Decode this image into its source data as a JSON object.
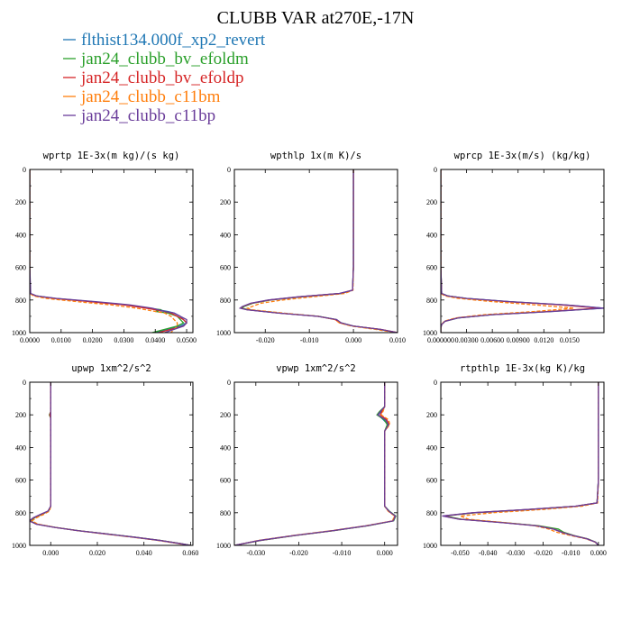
{
  "title": "CLUBB VAR at270E,-17N",
  "legend": [
    {
      "label": "flthist134.000f_xp2_revert",
      "color": "#1f77b4"
    },
    {
      "label": "jan24_clubb_bv_efoldm",
      "color": "#2ca02c"
    },
    {
      "label": "jan24_clubb_bv_efoldp",
      "color": "#d62728"
    },
    {
      "label": "jan24_clubb_c11bm",
      "color": "#ff7f0e"
    },
    {
      "label": "jan24_clubb_c11bp",
      "color": "#6a3d9a"
    }
  ],
  "chart_data": [
    {
      "type": "line",
      "title": "wprtp 1E-3x(m kg)/(s kg)",
      "xlim": [
        0,
        0.052
      ],
      "ylim": [
        1000,
        0
      ],
      "xticks": [
        0,
        0.01,
        0.02,
        0.03,
        0.04,
        0.05
      ],
      "xticklabels": [
        "0.0000",
        "0.0100",
        "0.0200",
        "0.0300",
        "0.0400",
        "0.0500"
      ],
      "yticks": [
        0,
        200,
        400,
        600,
        800,
        1000
      ],
      "yticklabels": [
        "0",
        "200",
        "400",
        "600",
        "800",
        "1000"
      ],
      "y": [
        0,
        200,
        400,
        600,
        760,
        775,
        790,
        810,
        830,
        850,
        860,
        870,
        880,
        900,
        920,
        940,
        960,
        980,
        1000
      ],
      "series": [
        {
          "name": "flthist134.000f_xp2_revert",
          "values": [
            0,
            0,
            0,
            0,
            0.0002,
            0.002,
            0.008,
            0.02,
            0.031,
            0.038,
            0.041,
            0.044,
            0.046,
            0.048,
            0.049,
            0.05,
            0.048,
            0.044,
            0.04
          ]
        },
        {
          "name": "jan24_clubb_bv_efoldm",
          "values": [
            0,
            0,
            0,
            0,
            0.0002,
            0.002,
            0.008,
            0.02,
            0.031,
            0.038,
            0.042,
            0.04,
            0.044,
            0.047,
            0.048,
            0.049,
            0.047,
            0.043,
            0.039
          ]
        },
        {
          "name": "jan24_clubb_bv_efoldp",
          "values": [
            0,
            0,
            0,
            0,
            0.0002,
            0.0018,
            0.0075,
            0.019,
            0.03,
            0.037,
            0.04,
            0.043,
            0.045,
            0.047,
            0.049,
            0.05,
            0.049,
            0.045,
            0.041
          ]
        },
        {
          "name": "jan24_clubb_c11bm",
          "values": [
            0,
            0,
            0,
            0,
            0.0001,
            0.0012,
            0.005,
            0.015,
            0.026,
            0.034,
            0.037,
            0.04,
            0.043,
            0.045,
            0.046,
            0.047,
            0.047,
            0.046,
            0.045
          ]
        },
        {
          "name": "jan24_clubb_c11bp",
          "values": [
            0,
            0,
            0,
            0,
            0.0003,
            0.0022,
            0.0085,
            0.021,
            0.032,
            0.039,
            0.041,
            0.043,
            0.046,
            0.048,
            0.05,
            0.05,
            0.049,
            0.046,
            0.043
          ]
        }
      ]
    },
    {
      "type": "line",
      "title": "wpthlp 1x(m K)/s",
      "xlim": [
        -0.027,
        0.01
      ],
      "ylim": [
        1000,
        0
      ],
      "xticks": [
        -0.02,
        -0.01,
        0,
        0.01
      ],
      "xticklabels": [
        "-0.020",
        "-0.010",
        "0.000",
        "0.010"
      ],
      "yticks": [
        0,
        200,
        400,
        600,
        800,
        1000
      ],
      "yticklabels": [
        "0",
        "200",
        "400",
        "600",
        "800",
        "1000"
      ],
      "y": [
        0,
        200,
        400,
        600,
        740,
        760,
        780,
        800,
        820,
        840,
        850,
        860,
        880,
        900,
        920,
        940,
        960,
        980,
        1000
      ],
      "series": [
        {
          "name": "flthist134.000f_xp2_revert",
          "values": [
            0,
            0,
            0,
            0,
            -0.0002,
            -0.003,
            -0.012,
            -0.019,
            -0.023,
            -0.025,
            -0.0255,
            -0.024,
            -0.017,
            -0.008,
            -0.004,
            -0.003,
            0,
            0.006,
            0.01
          ]
        },
        {
          "name": "jan24_clubb_bv_efoldm",
          "values": [
            0,
            0,
            0,
            0,
            -0.0002,
            -0.0028,
            -0.0118,
            -0.0188,
            -0.0228,
            -0.0248,
            -0.0253,
            -0.0238,
            -0.0168,
            -0.0079,
            -0.0039,
            -0.0028,
            0,
            0.006,
            0.0098
          ]
        },
        {
          "name": "jan24_clubb_bv_efoldp",
          "values": [
            0,
            0,
            0,
            0,
            -0.0002,
            -0.0031,
            -0.0121,
            -0.0191,
            -0.0231,
            -0.0251,
            -0.0256,
            -0.0241,
            -0.0171,
            -0.0081,
            -0.0041,
            -0.0031,
            0,
            0.0062,
            0.0101
          ]
        },
        {
          "name": "jan24_clubb_c11bm",
          "values": [
            0,
            0,
            0,
            0,
            -0.0001,
            -0.002,
            -0.009,
            -0.016,
            -0.021,
            -0.023,
            -0.024,
            -0.023,
            -0.016,
            -0.008,
            -0.0042,
            -0.0032,
            -0.0005,
            0.005,
            0.0095
          ]
        },
        {
          "name": "jan24_clubb_c11bp",
          "values": [
            0,
            0,
            0,
            0,
            -0.0002,
            -0.0032,
            -0.0123,
            -0.0193,
            -0.0233,
            -0.0252,
            -0.0257,
            -0.0242,
            -0.0172,
            -0.0082,
            -0.0038,
            -0.0028,
            0,
            0.0061,
            0.01
          ]
        }
      ]
    },
    {
      "type": "line",
      "title": "wprcp 1E-3x(m/s) (kg/kg)",
      "xlim": [
        0,
        0.019
      ],
      "ylim": [
        1000,
        0
      ],
      "xticks": [
        0,
        0.003,
        0.006,
        0.009,
        0.012,
        0.015
      ],
      "xticklabels": [
        "0.000000",
        "0.00300",
        "0.00600",
        "0.00900",
        "0.0120",
        "0.0150"
      ],
      "yticks": [
        0,
        200,
        400,
        600,
        800,
        1000
      ],
      "yticklabels": [
        "0",
        "200",
        "400",
        "600",
        "800",
        "1000"
      ],
      "y": [
        0,
        200,
        400,
        600,
        760,
        775,
        790,
        810,
        830,
        850,
        870,
        890,
        910,
        930,
        950,
        970,
        1000
      ],
      "series": [
        {
          "name": "flthist134.000f_xp2_revert",
          "values": [
            0,
            0,
            0,
            0,
            0.0001,
            0.0008,
            0.003,
            0.008,
            0.0145,
            0.019,
            0.013,
            0.006,
            0.002,
            0.0005,
            0.0001,
            0,
            0
          ]
        },
        {
          "name": "jan24_clubb_bv_efoldm",
          "values": [
            0,
            0,
            0,
            0,
            0.0001,
            0.0008,
            0.0029,
            0.0079,
            0.0143,
            0.0187,
            0.0128,
            0.0059,
            0.002,
            0.0005,
            0.0001,
            0,
            0
          ]
        },
        {
          "name": "jan24_clubb_bv_efoldp",
          "values": [
            0,
            0,
            0,
            0,
            0.0001,
            0.0007,
            0.0028,
            0.0077,
            0.014,
            0.0184,
            0.0127,
            0.0058,
            0.0019,
            0.0005,
            0.0001,
            0,
            0
          ]
        },
        {
          "name": "jan24_clubb_c11bm",
          "values": [
            0,
            0,
            0,
            0,
            0,
            0.0005,
            0.002,
            0.006,
            0.011,
            0.0155,
            0.011,
            0.005,
            0.0017,
            0.0004,
            0.0001,
            0,
            0
          ]
        },
        {
          "name": "jan24_clubb_c11bp",
          "values": [
            0,
            0,
            0,
            0,
            0.0001,
            0.0008,
            0.003,
            0.0081,
            0.0146,
            0.019,
            0.0131,
            0.006,
            0.002,
            0.0005,
            0.0001,
            0,
            0
          ]
        }
      ]
    },
    {
      "type": "line",
      "title": "upwp 1xm^2/s^2",
      "xlim": [
        -0.009,
        0.061
      ],
      "ylim": [
        1000,
        0
      ],
      "xticks": [
        0,
        0.02,
        0.04,
        0.06
      ],
      "xticklabels": [
        "0.000",
        "0.020",
        "0.040",
        "0.060"
      ],
      "yticks": [
        0,
        200,
        400,
        600,
        800,
        1000
      ],
      "yticklabels": [
        "0",
        "200",
        "400",
        "600",
        "800",
        "1000"
      ],
      "y": [
        0,
        180,
        200,
        220,
        400,
        600,
        760,
        790,
        810,
        830,
        850,
        870,
        890,
        910,
        930,
        950,
        970,
        990,
        1000
      ],
      "series": [
        {
          "name": "flthist134.000f_xp2_revert",
          "values": [
            0,
            0,
            0,
            0,
            0,
            0,
            0,
            -0.001,
            -0.004,
            -0.007,
            -0.009,
            -0.006,
            0.002,
            0.012,
            0.024,
            0.036,
            0.047,
            0.056,
            0.06
          ]
        },
        {
          "name": "jan24_clubb_bv_efoldm",
          "values": [
            0,
            0,
            -0.0006,
            0,
            0,
            0,
            0,
            -0.001,
            -0.0038,
            -0.0068,
            -0.0088,
            -0.0058,
            0.0021,
            0.0121,
            0.0241,
            0.0361,
            0.0471,
            0.0561,
            0.06
          ]
        },
        {
          "name": "jan24_clubb_bv_efoldp",
          "values": [
            0,
            0,
            -0.0004,
            0,
            0,
            0,
            0,
            -0.0011,
            -0.0042,
            -0.0072,
            -0.0091,
            -0.0061,
            0.0019,
            0.0119,
            0.0239,
            0.0359,
            0.0469,
            0.0559,
            0.0599
          ]
        },
        {
          "name": "jan24_clubb_c11bm",
          "values": [
            0,
            0,
            0,
            0,
            0,
            0,
            0,
            -0.0005,
            -0.003,
            -0.006,
            -0.008,
            -0.0055,
            0.002,
            0.0115,
            0.023,
            0.035,
            0.046,
            0.055,
            0.0595
          ]
        },
        {
          "name": "jan24_clubb_c11bp",
          "values": [
            0,
            0,
            0,
            0,
            0,
            0,
            0,
            -0.0012,
            -0.0044,
            -0.0074,
            -0.0092,
            -0.0062,
            0.0018,
            0.0118,
            0.0238,
            0.0358,
            0.0468,
            0.0558,
            0.06
          ]
        }
      ]
    },
    {
      "type": "line",
      "title": "vpwp 1xm^2/s^2",
      "xlim": [
        -0.035,
        0.003
      ],
      "ylim": [
        1000,
        0
      ],
      "xticks": [
        -0.03,
        -0.02,
        -0.01,
        0
      ],
      "xticklabels": [
        "-0.030",
        "-0.020",
        "-0.010",
        "0.000"
      ],
      "yticks": [
        0,
        200,
        400,
        600,
        800,
        1000
      ],
      "yticklabels": [
        "0",
        "200",
        "400",
        "600",
        "800",
        "1000"
      ],
      "y": [
        0,
        150,
        180,
        200,
        230,
        260,
        300,
        400,
        600,
        760,
        790,
        820,
        850,
        880,
        910,
        940,
        970,
        1000
      ],
      "series": [
        {
          "name": "flthist134.000f_xp2_revert",
          "values": [
            0,
            0,
            -0.0008,
            -0.0015,
            -0.0003,
            0.0008,
            0,
            0,
            0,
            0,
            0.001,
            0.0025,
            0.002,
            -0.004,
            -0.012,
            -0.021,
            -0.029,
            -0.035
          ]
        },
        {
          "name": "jan24_clubb_bv_efoldm",
          "values": [
            0,
            0,
            -0.0012,
            -0.0018,
            -0.0001,
            0.0006,
            0,
            0,
            0,
            0,
            0.0011,
            0.0026,
            0.0021,
            -0.0039,
            -0.0119,
            -0.0209,
            -0.0289,
            -0.0349
          ]
        },
        {
          "name": "jan24_clubb_bv_efoldp",
          "values": [
            0,
            0,
            -0.0006,
            -0.001,
            0.0005,
            0.001,
            0,
            0,
            0,
            0,
            0.0009,
            0.0024,
            0.0019,
            -0.0041,
            -0.0121,
            -0.0211,
            -0.0291,
            -0.035
          ]
        },
        {
          "name": "jan24_clubb_c11bm",
          "values": [
            0,
            0,
            -0.0004,
            -0.0008,
            0.0009,
            0.0012,
            0,
            0,
            0,
            0,
            0.0008,
            0.0023,
            0.0018,
            -0.0045,
            -0.0125,
            -0.0215,
            -0.0295,
            -0.0348
          ]
        },
        {
          "name": "jan24_clubb_c11bp",
          "values": [
            0,
            0,
            -0.001,
            -0.0016,
            0.0002,
            0.0009,
            0,
            0,
            0,
            0,
            0.001,
            0.0025,
            0.002,
            -0.0042,
            -0.0122,
            -0.0212,
            -0.0292,
            -0.035
          ]
        }
      ]
    },
    {
      "type": "line",
      "title": "rtpthlp 1E-3x(kg K)/kg",
      "xlim": [
        -0.057,
        0.002
      ],
      "ylim": [
        1000,
        0
      ],
      "xticks": [
        -0.05,
        -0.04,
        -0.03,
        -0.02,
        -0.01,
        0
      ],
      "xticklabels": [
        "-0.050",
        "-0.040",
        "-0.030",
        "-0.020",
        "-0.010",
        "0.000"
      ],
      "yticks": [
        0,
        200,
        400,
        600,
        800,
        1000
      ],
      "yticklabels": [
        "0",
        "200",
        "400",
        "600",
        "800",
        "1000"
      ],
      "y": [
        0,
        200,
        400,
        600,
        740,
        760,
        780,
        800,
        820,
        840,
        860,
        880,
        900,
        920,
        940,
        960,
        980,
        1000
      ],
      "series": [
        {
          "name": "flthist134.000f_xp2_revert",
          "values": [
            0,
            0,
            0,
            0,
            -0.0005,
            -0.008,
            -0.025,
            -0.045,
            -0.056,
            -0.05,
            -0.035,
            -0.022,
            -0.016,
            -0.013,
            -0.009,
            -0.004,
            -0.001,
            0
          ]
        },
        {
          "name": "jan24_clubb_bv_efoldm",
          "values": [
            0,
            0,
            0,
            0,
            -0.0005,
            -0.0078,
            -0.0245,
            -0.0445,
            -0.0555,
            -0.0495,
            -0.0345,
            -0.0215,
            -0.0145,
            -0.0125,
            -0.0088,
            -0.0039,
            -0.001,
            0
          ]
        },
        {
          "name": "jan24_clubb_bv_efoldp",
          "values": [
            0,
            0,
            0,
            0,
            -0.0005,
            -0.0082,
            -0.0252,
            -0.0452,
            -0.0562,
            -0.0502,
            -0.0352,
            -0.0222,
            -0.0162,
            -0.0132,
            -0.0091,
            -0.0041,
            -0.0011,
            0
          ]
        },
        {
          "name": "jan24_clubb_c11bm",
          "values": [
            0,
            0,
            0,
            0,
            -0.0003,
            -0.006,
            -0.02,
            -0.038,
            -0.05,
            -0.047,
            -0.034,
            -0.023,
            -0.018,
            -0.015,
            -0.01,
            -0.0045,
            -0.0012,
            0
          ]
        },
        {
          "name": "jan24_clubb_c11bp",
          "values": [
            0,
            0,
            0,
            0,
            -0.0005,
            -0.0083,
            -0.0255,
            -0.0455,
            -0.0565,
            -0.0505,
            -0.0355,
            -0.0225,
            -0.0163,
            -0.0133,
            -0.0092,
            -0.0042,
            -0.0011,
            0
          ]
        }
      ]
    }
  ]
}
